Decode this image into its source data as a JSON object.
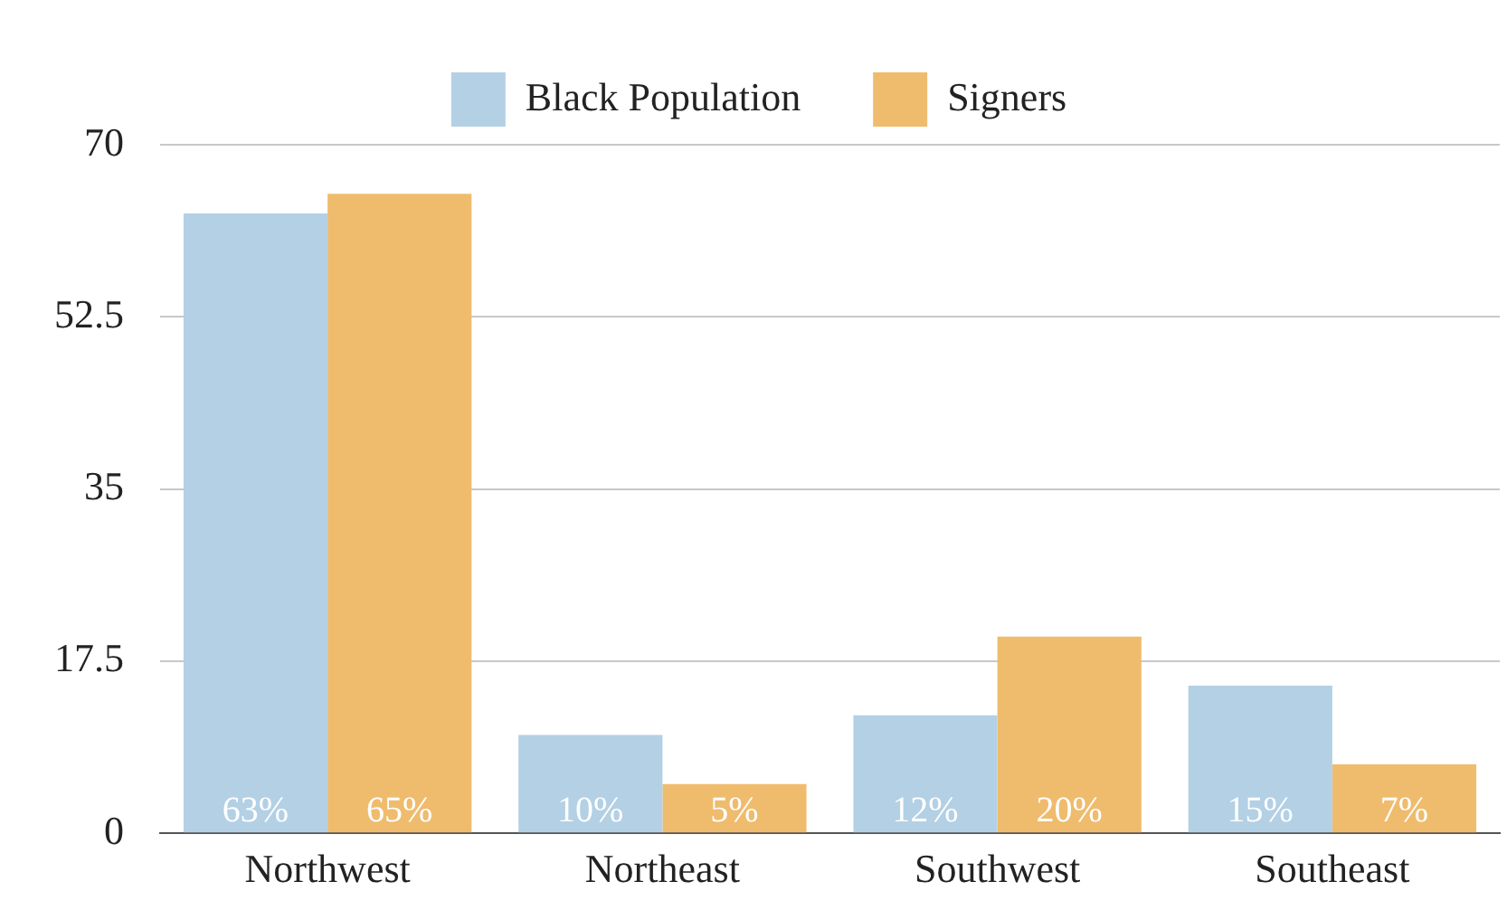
{
  "chart_data": {
    "type": "bar",
    "categories": [
      "Northwest",
      "Northeast",
      "Southwest",
      "Southeast"
    ],
    "series": [
      {
        "name": "Black Population",
        "color": "#b3d0e5",
        "values": [
          63,
          10,
          12,
          15
        ],
        "value_labels": [
          "63%",
          "10%",
          "12%",
          "15%"
        ]
      },
      {
        "name": "Signers",
        "color": "#efbc6d",
        "values": [
          65,
          5,
          20,
          7
        ],
        "value_labels": [
          "65%",
          "5%",
          "20%",
          "7%"
        ]
      }
    ],
    "ylim": [
      0,
      70
    ],
    "yticks": [
      0,
      17.5,
      35,
      52.5,
      70
    ],
    "grid": "y",
    "legend": "top"
  }
}
